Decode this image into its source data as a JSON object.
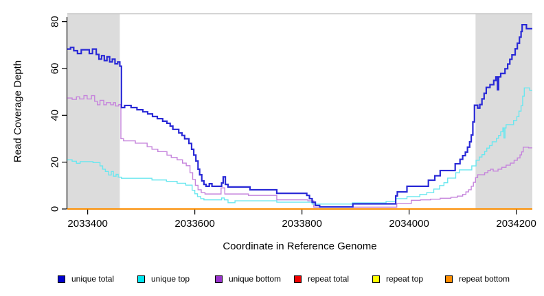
{
  "figure": {
    "background": "#ffffff",
    "band_color": "#dcdcdc",
    "top_border_color": "#c6c6c6",
    "axis_color": "#000000",
    "text_color": "#000000"
  },
  "chart_data": {
    "type": "line",
    "title": "",
    "xlabel": "Coordinate in Reference Genome",
    "ylabel": "Read Coverage Depth",
    "xlim": [
      2033362,
      2034230
    ],
    "ylim": [
      0,
      83.4
    ],
    "grid": false,
    "legend_position": "bottom",
    "x_ticks": {
      "values": [
        2033400,
        2033600,
        2033800,
        2034000,
        2034200
      ],
      "labels": [
        "2033400",
        "2033600",
        "2033800",
        "2034000",
        "2034200"
      ]
    },
    "y_ticks": {
      "values": [
        0,
        20,
        40,
        60,
        80
      ],
      "labels": [
        "0",
        "20",
        "40",
        "60",
        "80"
      ]
    },
    "shaded_regions": [
      {
        "x0": 2033362,
        "x1": 2033460
      },
      {
        "x0": 2034124,
        "x1": 2034230
      }
    ],
    "series": [
      {
        "name": "repeat total",
        "color": "#ee0000",
        "width": 1.4,
        "points": [
          [
            2033362,
            0
          ],
          [
            2034230,
            0
          ]
        ]
      },
      {
        "name": "repeat top",
        "color": "#ffff00",
        "width": 1.4,
        "points": [
          [
            2033362,
            0
          ],
          [
            2034230,
            0
          ]
        ]
      },
      {
        "name": "repeat bottom",
        "color": "#ff8c00",
        "width": 1.7,
        "points": [
          [
            2033362,
            0
          ],
          [
            2034230,
            0
          ]
        ]
      },
      {
        "name": "unique bottom",
        "color": "#c583dc",
        "width": 1.4,
        "points": [
          [
            2033362,
            47.4
          ],
          [
            2033371,
            46.8
          ],
          [
            2033379,
            47.9
          ],
          [
            2033385,
            47
          ],
          [
            2033393,
            48.4
          ],
          [
            2033399,
            47
          ],
          [
            2033407,
            48.4
          ],
          [
            2033413,
            46
          ],
          [
            2033418,
            44.5
          ],
          [
            2033423,
            46.4
          ],
          [
            2033430,
            44.5
          ],
          [
            2033435,
            45.4
          ],
          [
            2033443,
            44.5
          ],
          [
            2033448,
            45.4
          ],
          [
            2033452,
            44
          ],
          [
            2033458,
            44.6
          ],
          [
            2033462,
            30
          ],
          [
            2033467,
            29.1
          ],
          [
            2033489,
            28.1
          ],
          [
            2033511,
            26.6
          ],
          [
            2033520,
            25.5
          ],
          [
            2033531,
            24.5
          ],
          [
            2033548,
            23
          ],
          [
            2033556,
            22
          ],
          [
            2033567,
            21
          ],
          [
            2033577,
            19.6
          ],
          [
            2033584,
            18.5
          ],
          [
            2033591,
            15.5
          ],
          [
            2033596,
            12.6
          ],
          [
            2033601,
            10.1
          ],
          [
            2033606,
            8.2
          ],
          [
            2033612,
            7
          ],
          [
            2033619,
            6.4
          ],
          [
            2033649,
            9
          ],
          [
            2033656,
            6.4
          ],
          [
            2033700,
            5.8
          ],
          [
            2033753,
            3.9
          ],
          [
            2033811,
            3.5
          ],
          [
            2033822,
            0.8
          ],
          [
            2033977,
            2.3
          ],
          [
            2034004,
            3.7
          ],
          [
            2034021,
            3.9
          ],
          [
            2034040,
            4.2
          ],
          [
            2034058,
            4.6
          ],
          [
            2034078,
            5
          ],
          [
            2034090,
            5.5
          ],
          [
            2034100,
            6.2
          ],
          [
            2034106,
            7.3
          ],
          [
            2034111,
            8.2
          ],
          [
            2034116,
            9.7
          ],
          [
            2034120,
            11.4
          ],
          [
            2034124,
            13.4
          ],
          [
            2034128,
            14.6
          ],
          [
            2034141,
            15.5
          ],
          [
            2034147,
            16.4
          ],
          [
            2034152,
            17
          ],
          [
            2034157,
            16.2
          ],
          [
            2034166,
            17
          ],
          [
            2034173,
            17.8
          ],
          [
            2034181,
            18.7
          ],
          [
            2034189,
            19.6
          ],
          [
            2034196,
            20.8
          ],
          [
            2034202,
            21.8
          ],
          [
            2034207,
            23.1
          ],
          [
            2034210,
            24.4
          ],
          [
            2034213,
            26.4
          ],
          [
            2034223,
            26.1
          ],
          [
            2034230,
            26.1
          ]
        ]
      },
      {
        "name": "unique top",
        "color": "#6ae7ef",
        "width": 1.4,
        "points": [
          [
            2033362,
            21
          ],
          [
            2033371,
            20.4
          ],
          [
            2033379,
            19.5
          ],
          [
            2033386,
            20.2
          ],
          [
            2033410,
            19.8
          ],
          [
            2033423,
            18.4
          ],
          [
            2033428,
            17
          ],
          [
            2033433,
            16
          ],
          [
            2033439,
            14.5
          ],
          [
            2033444,
            16
          ],
          [
            2033448,
            14
          ],
          [
            2033453,
            14.8
          ],
          [
            2033457,
            13.6
          ],
          [
            2033463,
            13.1
          ],
          [
            2033520,
            12.4
          ],
          [
            2033547,
            11.8
          ],
          [
            2033567,
            11
          ],
          [
            2033583,
            10.2
          ],
          [
            2033595,
            8
          ],
          [
            2033600,
            6.5
          ],
          [
            2033605,
            5.3
          ],
          [
            2033611,
            4.4
          ],
          [
            2033617,
            3.9
          ],
          [
            2033650,
            4.7
          ],
          [
            2033655,
            3.9
          ],
          [
            2033662,
            2.7
          ],
          [
            2033675,
            3.5
          ],
          [
            2033753,
            2.9
          ],
          [
            2033819,
            2.1
          ],
          [
            2033894,
            2.6
          ],
          [
            2033957,
            3.2
          ],
          [
            2033975,
            4.4
          ],
          [
            2033996,
            5.3
          ],
          [
            2034020,
            6.2
          ],
          [
            2034033,
            7
          ],
          [
            2034046,
            8.5
          ],
          [
            2034057,
            10
          ],
          [
            2034065,
            11.2
          ],
          [
            2034072,
            13.2
          ],
          [
            2034087,
            15.5
          ],
          [
            2034094,
            16.7
          ],
          [
            2034117,
            18.4
          ],
          [
            2034125,
            20.8
          ],
          [
            2034131,
            22.2
          ],
          [
            2034136,
            23.2
          ],
          [
            2034141,
            24.6
          ],
          [
            2034145,
            26
          ],
          [
            2034150,
            27.1
          ],
          [
            2034155,
            28.7
          ],
          [
            2034163,
            30.2
          ],
          [
            2034167,
            31.4
          ],
          [
            2034171,
            33
          ],
          [
            2034175,
            34.6
          ],
          [
            2034177,
            30.3
          ],
          [
            2034179,
            34.6
          ],
          [
            2034181,
            36
          ],
          [
            2034195,
            37.8
          ],
          [
            2034201,
            39.4
          ],
          [
            2034205,
            41.8
          ],
          [
            2034209,
            44.1
          ],
          [
            2034212,
            48.2
          ],
          [
            2034215,
            51.7
          ],
          [
            2034225,
            50.7
          ],
          [
            2034230,
            50.7
          ]
        ]
      },
      {
        "name": "unique total",
        "color": "#2929d6",
        "width": 2.2,
        "points": [
          [
            2033362,
            68.3
          ],
          [
            2033368,
            69
          ],
          [
            2033374,
            67.6
          ],
          [
            2033381,
            66.4
          ],
          [
            2033388,
            68
          ],
          [
            2033403,
            66.4
          ],
          [
            2033409,
            68.3
          ],
          [
            2033416,
            66
          ],
          [
            2033421,
            64
          ],
          [
            2033426,
            65.5
          ],
          [
            2033431,
            63.4
          ],
          [
            2033436,
            65
          ],
          [
            2033441,
            62.8
          ],
          [
            2033446,
            64
          ],
          [
            2033451,
            62
          ],
          [
            2033456,
            62.8
          ],
          [
            2033460,
            61
          ],
          [
            2033463,
            43.3
          ],
          [
            2033469,
            44.2
          ],
          [
            2033481,
            43.3
          ],
          [
            2033492,
            42.4
          ],
          [
            2033503,
            41.5
          ],
          [
            2033512,
            40.6
          ],
          [
            2033521,
            39.5
          ],
          [
            2033530,
            38.6
          ],
          [
            2033540,
            37.5
          ],
          [
            2033548,
            36.6
          ],
          [
            2033554,
            35.4
          ],
          [
            2033559,
            34
          ],
          [
            2033570,
            32.5
          ],
          [
            2033576,
            31.4
          ],
          [
            2033581,
            30
          ],
          [
            2033589,
            28
          ],
          [
            2033594,
            25.5
          ],
          [
            2033598,
            23
          ],
          [
            2033602,
            20.5
          ],
          [
            2033606,
            17
          ],
          [
            2033609,
            14.6
          ],
          [
            2033613,
            12
          ],
          [
            2033617,
            10.5
          ],
          [
            2033621,
            9.7
          ],
          [
            2033627,
            10.8
          ],
          [
            2033632,
            9.7
          ],
          [
            2033650,
            11.1
          ],
          [
            2033653,
            13.7
          ],
          [
            2033657,
            10.5
          ],
          [
            2033662,
            9.4
          ],
          [
            2033703,
            8.2
          ],
          [
            2033753,
            6.7
          ],
          [
            2033809,
            5.8
          ],
          [
            2033814,
            4.4
          ],
          [
            2033819,
            2.9
          ],
          [
            2033825,
            1.5
          ],
          [
            2033833,
            0.9
          ],
          [
            2033895,
            2.2
          ],
          [
            2033975,
            5.6
          ],
          [
            2033978,
            7.3
          ],
          [
            2033996,
            9.7
          ],
          [
            2034036,
            12.3
          ],
          [
            2034048,
            14.2
          ],
          [
            2034058,
            16.4
          ],
          [
            2034086,
            19.3
          ],
          [
            2034095,
            21.2
          ],
          [
            2034100,
            22.8
          ],
          [
            2034105,
            24.3
          ],
          [
            2034109,
            26.4
          ],
          [
            2034113,
            28.7
          ],
          [
            2034116,
            31.6
          ],
          [
            2034119,
            37.2
          ],
          [
            2034122,
            44.3
          ],
          [
            2034128,
            43.1
          ],
          [
            2034132,
            44.6
          ],
          [
            2034136,
            47
          ],
          [
            2034140,
            49.4
          ],
          [
            2034144,
            51.9
          ],
          [
            2034151,
            53.1
          ],
          [
            2034158,
            54.9
          ],
          [
            2034162,
            56.4
          ],
          [
            2034165,
            50.9
          ],
          [
            2034167,
            56.4
          ],
          [
            2034171,
            57.9
          ],
          [
            2034179,
            59.9
          ],
          [
            2034184,
            61.9
          ],
          [
            2034188,
            63.9
          ],
          [
            2034192,
            65.8
          ],
          [
            2034198,
            68.4
          ],
          [
            2034202,
            70.8
          ],
          [
            2034206,
            73.4
          ],
          [
            2034209,
            75.8
          ],
          [
            2034211,
            78.7
          ],
          [
            2034219,
            77
          ],
          [
            2034230,
            77
          ]
        ]
      }
    ],
    "legend": [
      {
        "label": "unique total",
        "color": "#0000cd"
      },
      {
        "label": "unique top",
        "color": "#00e5ee"
      },
      {
        "label": "unique bottom",
        "color": "#9932cc"
      },
      {
        "label": "repeat total",
        "color": "#ee0000"
      },
      {
        "label": "repeat top",
        "color": "#ffff00"
      },
      {
        "label": "repeat bottom",
        "color": "#ff8c00"
      }
    ]
  }
}
